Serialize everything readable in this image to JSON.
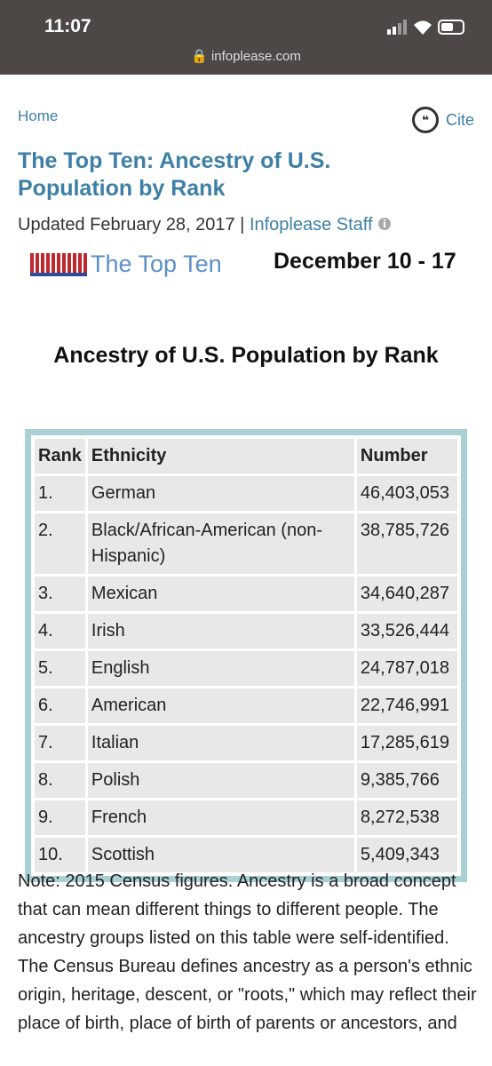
{
  "status_bar": {
    "time": "11:07",
    "url": "infoplease.com"
  },
  "breadcrumb": "Home",
  "cite": "Cite",
  "title": "The Top Ten: Ancestry of U.S. Population by Rank",
  "updated": "Updated February 28, 2017 |",
  "author": "Infoplease Staff",
  "logo_text": "The Top Ten",
  "dates": "December 10 - 17",
  "heading": "Ancestry of U.S. Population by Rank",
  "table": {
    "header": [
      "Rank",
      "Ethnicity",
      "Number"
    ],
    "rows": [
      [
        "1.",
        "German",
        "46,403,053"
      ],
      [
        "2.",
        "Black/African-American (non-Hispanic)",
        "38,785,726"
      ],
      [
        "3.",
        "Mexican",
        "34,640,287"
      ],
      [
        "4.",
        "Irish",
        "33,526,444"
      ],
      [
        "5.",
        "English",
        "24,787,018"
      ],
      [
        "6.",
        "American",
        "22,746,991"
      ],
      [
        "7.",
        "Italian",
        "17,285,619"
      ],
      [
        "8.",
        "Polish",
        "9,385,766"
      ],
      [
        "9.",
        "French",
        "8,272,538"
      ],
      [
        "10.",
        "Scottish",
        "5,409,343"
      ]
    ]
  },
  "note": "Note: 2015 Census figures. Ancestry is a broad concept that can mean different things to different people. The ancestry groups listed on this table were self-identified. The Census Bureau defines ancestry as a person's ethnic origin, heritage, descent, or \"roots,\" which may reflect their place of birth, place of birth of parents or ancestors, and"
}
